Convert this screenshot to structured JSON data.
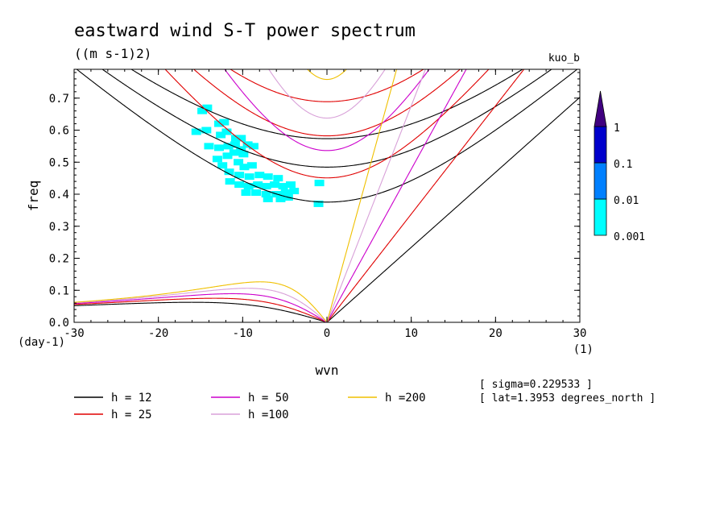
{
  "chart_data": {
    "type": "heatmap",
    "title": "eastward wind S-T power spectrum",
    "subtitle": "((m s-1)2)",
    "label_right": "kuo_b",
    "xlabel": "wvn",
    "ylabel": "freq",
    "x_unit": "(1)",
    "y_unit": "(day-1)",
    "xlim": [
      -30,
      30
    ],
    "ylim": [
      0,
      0.79
    ],
    "xticks": [
      -30,
      -20,
      -10,
      0,
      10,
      20,
      30
    ],
    "yticks": [
      0.0,
      0.1,
      0.2,
      0.3,
      0.4,
      0.5,
      0.6,
      0.7
    ],
    "xtick_labels": [
      "-30",
      "-20",
      "-10",
      "0",
      "10",
      "20",
      "30"
    ],
    "ytick_labels": [
      "0.0",
      "0.1",
      "0.2",
      "0.3",
      "0.4",
      "0.5",
      "0.6",
      "0.7"
    ],
    "colorbar": {
      "levels": [
        "0.001",
        "0.01",
        "0.1",
        "1"
      ],
      "colors": [
        "#00ffff",
        "#0080ff",
        "#0000cc",
        "#400080"
      ]
    },
    "dispersion_curves": [
      {
        "name": "h = 12",
        "h": 12,
        "color": "#000000"
      },
      {
        "name": "h = 25",
        "h": 25,
        "color": "#e00000"
      },
      {
        "name": "h = 50",
        "h": 50,
        "color": "#cc00cc"
      },
      {
        "name": "h =100",
        "h": 100,
        "color": "#d8a0d8"
      },
      {
        "name": "h =200",
        "h": 200,
        "color": "#f0c000"
      }
    ],
    "power_patches_0_001": [
      {
        "x": -14.8,
        "y": 0.66
      },
      {
        "x": -14.2,
        "y": 0.67
      },
      {
        "x": -12.8,
        "y": 0.62
      },
      {
        "x": -12.2,
        "y": 0.625
      },
      {
        "x": -15.5,
        "y": 0.595
      },
      {
        "x": -14.3,
        "y": 0.6
      },
      {
        "x": -11.9,
        "y": 0.595
      },
      {
        "x": -12.6,
        "y": 0.585
      },
      {
        "x": -10.8,
        "y": 0.575
      },
      {
        "x": -10.2,
        "y": 0.575
      },
      {
        "x": -14.0,
        "y": 0.55
      },
      {
        "x": -12.8,
        "y": 0.545
      },
      {
        "x": -11.7,
        "y": 0.55
      },
      {
        "x": -10.9,
        "y": 0.555
      },
      {
        "x": -10.2,
        "y": 0.54
      },
      {
        "x": -9.4,
        "y": 0.555
      },
      {
        "x": -8.7,
        "y": 0.55
      },
      {
        "x": -13.0,
        "y": 0.51
      },
      {
        "x": -11.8,
        "y": 0.52
      },
      {
        "x": -11.0,
        "y": 0.53
      },
      {
        "x": -9.9,
        "y": 0.525
      },
      {
        "x": -12.4,
        "y": 0.49
      },
      {
        "x": -10.5,
        "y": 0.5
      },
      {
        "x": -9.8,
        "y": 0.485
      },
      {
        "x": -8.9,
        "y": 0.49
      },
      {
        "x": -11.6,
        "y": 0.47
      },
      {
        "x": -10.4,
        "y": 0.46
      },
      {
        "x": -9.2,
        "y": 0.455
      },
      {
        "x": -8.0,
        "y": 0.46
      },
      {
        "x": -7.0,
        "y": 0.455
      },
      {
        "x": -5.8,
        "y": 0.45
      },
      {
        "x": -11.5,
        "y": 0.44
      },
      {
        "x": -10.4,
        "y": 0.43
      },
      {
        "x": -9.3,
        "y": 0.425
      },
      {
        "x": -8.2,
        "y": 0.43
      },
      {
        "x": -7.2,
        "y": 0.425
      },
      {
        "x": -6.2,
        "y": 0.43
      },
      {
        "x": -5.2,
        "y": 0.425
      },
      {
        "x": -4.3,
        "y": 0.43
      },
      {
        "x": -9.6,
        "y": 0.405
      },
      {
        "x": -8.4,
        "y": 0.405
      },
      {
        "x": -7.2,
        "y": 0.4
      },
      {
        "x": -6.0,
        "y": 0.4
      },
      {
        "x": -4.9,
        "y": 0.405
      },
      {
        "x": -3.9,
        "y": 0.41
      },
      {
        "x": -7.0,
        "y": 0.385
      },
      {
        "x": -5.5,
        "y": 0.385
      },
      {
        "x": -4.6,
        "y": 0.39
      },
      {
        "x": -0.9,
        "y": 0.435
      },
      {
        "x": -1.0,
        "y": 0.37
      }
    ],
    "info_lines": [
      "[ sigma=0.229533 ]",
      "[ lat=1.3953 degrees_north ]"
    ]
  }
}
